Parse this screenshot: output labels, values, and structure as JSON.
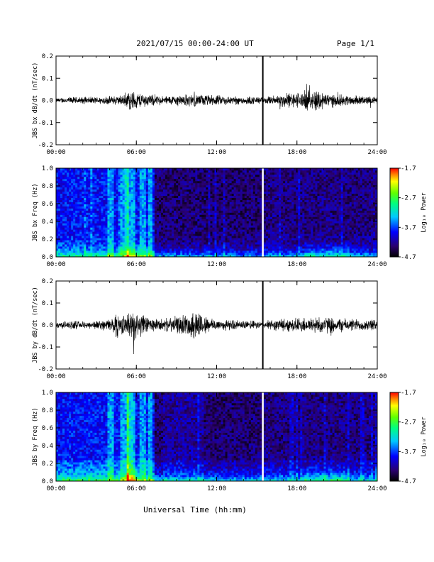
{
  "header": {
    "title": "2021/07/15  00:00-24:00 UT",
    "page": "Page 1/1"
  },
  "xlabel": "Universal Time (hh:mm)",
  "x_ticks": [
    "00:00",
    "06:00",
    "12:00",
    "18:00",
    "24:00"
  ],
  "x_range_hours": [
    0,
    24
  ],
  "marker_hour": 15.45,
  "colorbar": {
    "label": "Log₁₀ Power",
    "ticks": [
      "-1.7",
      "-2.7",
      "-3.7",
      "-4.7"
    ],
    "range": [
      -4.7,
      -1.7
    ]
  },
  "chart_data": [
    {
      "type": "line",
      "ylabel": "JBS bx dB/dt (nT/sec)",
      "ylim": [
        -0.2,
        0.2
      ],
      "y_ticks": [
        "0.2",
        "0.1",
        "0.0",
        "-0.1",
        "-0.2"
      ],
      "series": [
        {
          "x": [
            0,
            1,
            2,
            3,
            4,
            5,
            5.5,
            6,
            7,
            8,
            9,
            10,
            11,
            12,
            13,
            14,
            15,
            15.5,
            16,
            17,
            18,
            19,
            19.5,
            20,
            21,
            22,
            23,
            24
          ],
          "amplitude": [
            0.008,
            0.012,
            0.012,
            0.012,
            0.015,
            0.018,
            0.035,
            0.03,
            0.02,
            0.015,
            0.018,
            0.022,
            0.02,
            0.018,
            0.015,
            0.015,
            0.014,
            0.01,
            0.015,
            0.025,
            0.028,
            0.035,
            0.04,
            0.03,
            0.02,
            0.018,
            0.015,
            0.012
          ]
        }
      ]
    },
    {
      "type": "heatmap",
      "ylabel": "JBS bx Freq (Hz)",
      "ylim": [
        0,
        1.0
      ],
      "y_ticks": [
        "1.0",
        "0.8",
        "0.6",
        "0.4",
        "0.2",
        "0.0"
      ]
    },
    {
      "type": "line",
      "ylabel": "JBS by dB/dt (nT/sec)",
      "ylim": [
        -0.2,
        0.2
      ],
      "y_ticks": [
        "0.2",
        "0.1",
        "0.0",
        "-0.1",
        "-0.2"
      ],
      "series": [
        {
          "x": [
            0,
            1,
            2,
            3,
            4,
            4.5,
            5,
            5.5,
            6,
            7,
            8,
            9,
            10,
            10.5,
            11,
            12,
            13,
            14,
            15,
            15.5,
            16,
            17,
            18,
            19,
            20,
            21,
            22,
            23,
            24
          ],
          "amplitude": [
            0.01,
            0.015,
            0.012,
            0.015,
            0.02,
            0.05,
            0.03,
            0.045,
            0.05,
            0.025,
            0.02,
            0.03,
            0.04,
            0.06,
            0.035,
            0.02,
            0.018,
            0.015,
            0.014,
            0.01,
            0.018,
            0.022,
            0.025,
            0.028,
            0.03,
            0.025,
            0.022,
            0.02,
            0.018
          ]
        }
      ]
    },
    {
      "type": "heatmap",
      "ylabel": "JBS by Freq (Hz)",
      "ylim": [
        0,
        1.0
      ],
      "y_ticks": [
        "1.0",
        "0.8",
        "0.6",
        "0.4",
        "0.2",
        "0.0"
      ]
    }
  ]
}
